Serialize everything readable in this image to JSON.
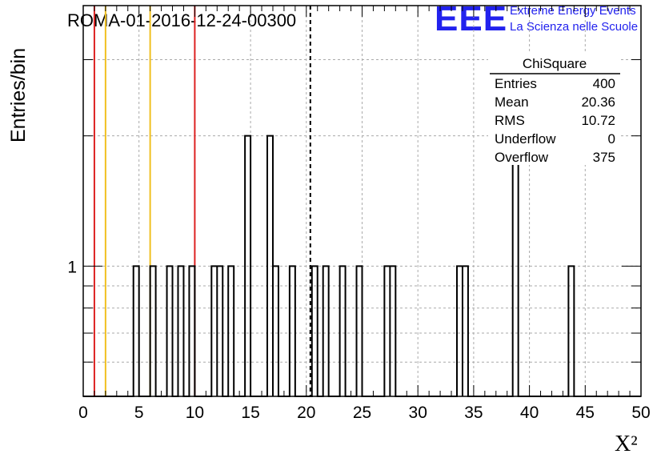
{
  "header": {
    "run_title": "ROMA-01-2016-12-24-00300",
    "logo_text": "EEE",
    "project_line1": "Extreme Energy Events",
    "project_line2": "La Scienza nelle Scuole"
  },
  "stats_box": {
    "title": "ChiSquare",
    "rows": [
      {
        "label": "Entries",
        "value": "400"
      },
      {
        "label": "Mean",
        "value": "20.36"
      },
      {
        "label": "RMS",
        "value": "10.72"
      },
      {
        "label": "Underflow",
        "value": "0"
      },
      {
        "label": "Overflow",
        "value": "375"
      }
    ]
  },
  "chart_data": {
    "type": "histogram",
    "xlabel": "X²",
    "ylabel": "Entries/bin",
    "xlim": [
      0,
      50
    ],
    "ylim": [
      0.5,
      4
    ],
    "y_scale": "log",
    "x_ticks": [
      "0",
      "5",
      "10",
      "15",
      "20",
      "25",
      "30",
      "35",
      "40",
      "45",
      "50"
    ],
    "y_ticks": [
      "1"
    ],
    "bin_width": 0.5,
    "grid": true,
    "bins": [
      {
        "x": 4.5,
        "count": 1
      },
      {
        "x": 6.0,
        "count": 1
      },
      {
        "x": 7.5,
        "count": 1
      },
      {
        "x": 8.5,
        "count": 1
      },
      {
        "x": 9.5,
        "count": 1
      },
      {
        "x": 11.5,
        "count": 1
      },
      {
        "x": 12.0,
        "count": 1
      },
      {
        "x": 13.0,
        "count": 1
      },
      {
        "x": 14.5,
        "count": 2
      },
      {
        "x": 16.5,
        "count": 2
      },
      {
        "x": 17.0,
        "count": 1
      },
      {
        "x": 18.5,
        "count": 1
      },
      {
        "x": 20.5,
        "count": 1
      },
      {
        "x": 21.5,
        "count": 1
      },
      {
        "x": 23.0,
        "count": 1
      },
      {
        "x": 24.5,
        "count": 1
      },
      {
        "x": 27.0,
        "count": 1
      },
      {
        "x": 27.5,
        "count": 1
      },
      {
        "x": 33.5,
        "count": 1
      },
      {
        "x": 34.0,
        "count": 1
      },
      {
        "x": 38.5,
        "count": 2
      },
      {
        "x": 43.5,
        "count": 1
      }
    ],
    "reference_lines": [
      {
        "x": 1,
        "color": "#dd2222",
        "style": "solid"
      },
      {
        "x": 2,
        "color": "#f0c020",
        "style": "solid"
      },
      {
        "x": 6,
        "color": "#f0c020",
        "style": "solid"
      },
      {
        "x": 10,
        "color": "#dd2222",
        "style": "solid"
      },
      {
        "x": 20.36,
        "color": "#000000",
        "style": "dashed"
      }
    ],
    "colors": {
      "histogram": "#000000",
      "grid": "#aaaaaa",
      "logo": "#2222ee"
    }
  }
}
